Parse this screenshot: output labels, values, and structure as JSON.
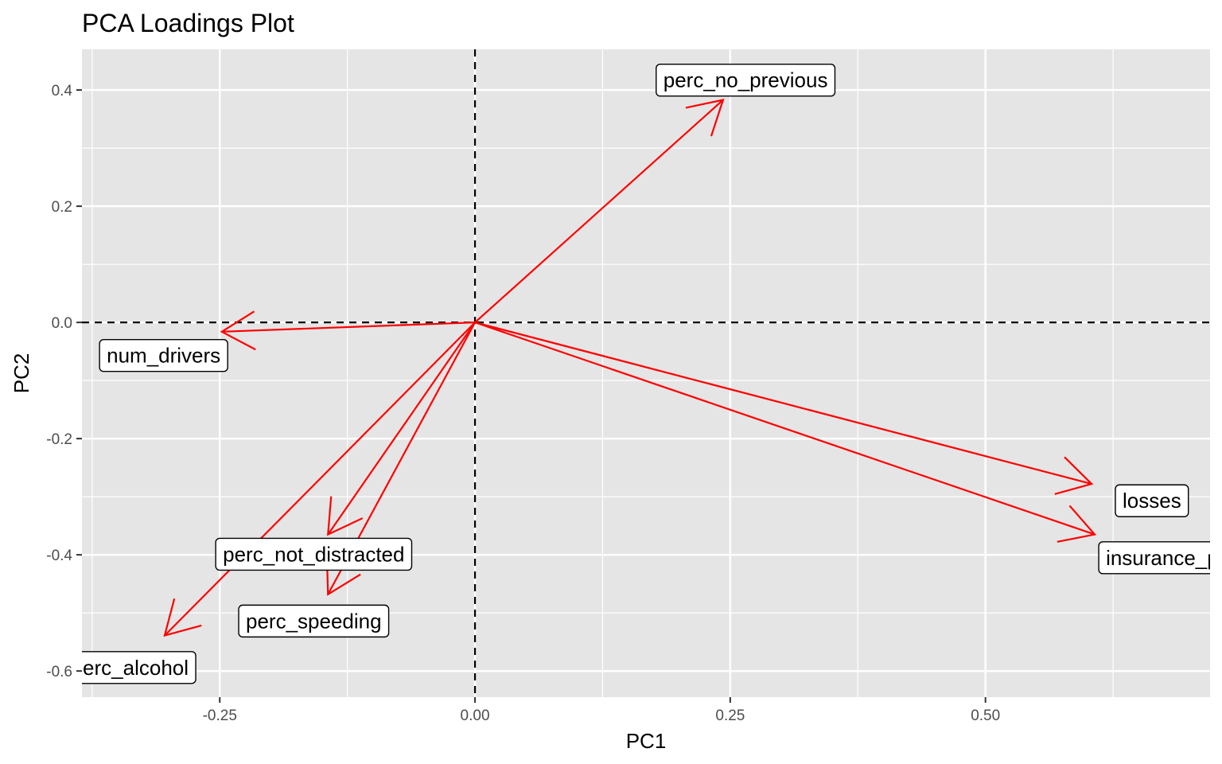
{
  "chart_data": {
    "type": "scatter",
    "title": "PCA Loadings Plot",
    "xlabel": "PC1",
    "ylabel": "PC2",
    "xlim": [
      -0.385,
      0.72
    ],
    "ylim": [
      -0.645,
      0.47
    ],
    "x_ticks": [
      {
        "value": -0.25,
        "label": "-0.25"
      },
      {
        "value": 0.0,
        "label": "0.00"
      },
      {
        "value": 0.25,
        "label": "0.25"
      },
      {
        "value": 0.5,
        "label": "0.50"
      }
    ],
    "y_ticks": [
      {
        "value": -0.6,
        "label": "-0.6"
      },
      {
        "value": -0.4,
        "label": "-0.4"
      },
      {
        "value": -0.2,
        "label": "-0.2"
      },
      {
        "value": 0.0,
        "label": "0.0"
      },
      {
        "value": 0.2,
        "label": "0.2"
      },
      {
        "value": 0.4,
        "label": "0.4"
      }
    ],
    "reference_lines": {
      "x": 0,
      "y": 0,
      "style": "dashed"
    },
    "grid": true,
    "arrow_color": "#ff0000",
    "panel_color": "#e5e5e5",
    "loadings": [
      {
        "label": "num_drivers",
        "x": -0.248,
        "y": -0.016,
        "label_x": -0.305,
        "label_y": -0.057
      },
      {
        "label": "perc_no_previous",
        "x": 0.243,
        "y": 0.383,
        "label_x": 0.265,
        "label_y": 0.417
      },
      {
        "label": "losses",
        "x": 0.604,
        "y": -0.278,
        "label_x": 0.663,
        "label_y": -0.307
      },
      {
        "label": "insurance_premiums",
        "x": 0.607,
        "y": -0.365,
        "label_x": 0.712,
        "label_y": -0.405
      },
      {
        "label": "perc_not_distracted",
        "x": -0.144,
        "y": -0.365,
        "label_x": -0.158,
        "label_y": -0.399
      },
      {
        "label": "perc_speeding",
        "x": -0.144,
        "y": -0.468,
        "label_x": -0.158,
        "label_y": -0.514
      },
      {
        "label": "perc_alcohol",
        "x": -0.304,
        "y": -0.539,
        "label_x": -0.338,
        "label_y": -0.594
      }
    ]
  }
}
